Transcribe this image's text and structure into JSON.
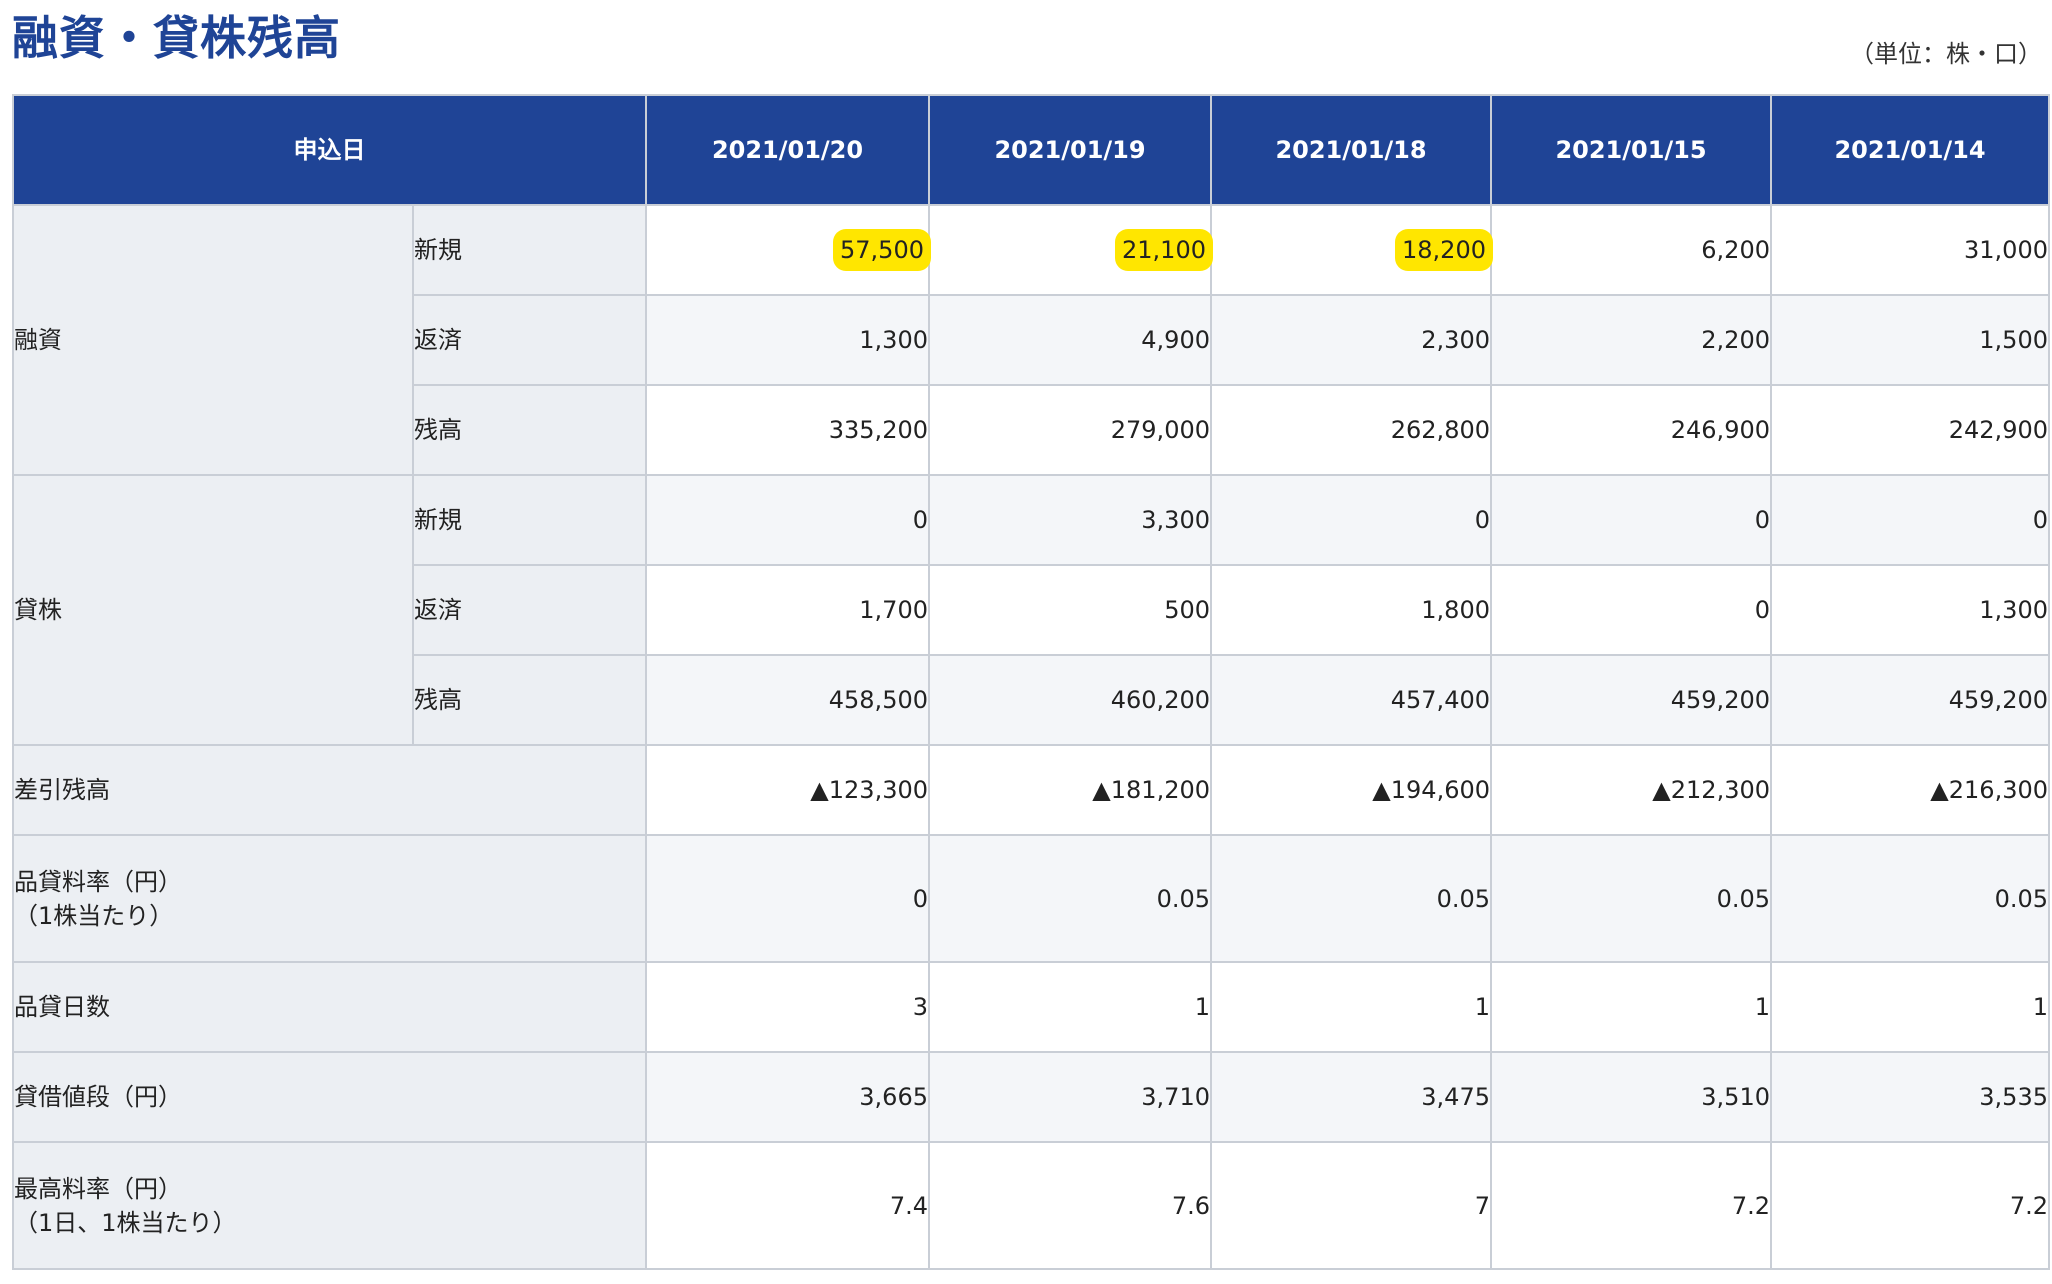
{
  "title": "融資・貸株残高",
  "unit": "（単位：株・口）",
  "header": {
    "date_label": "申込日",
    "dates": [
      "2021/01/20",
      "2021/01/19",
      "2021/01/18",
      "2021/01/15",
      "2021/01/14"
    ]
  },
  "groups": {
    "margin": "融資",
    "lending": "貸株"
  },
  "rows": {
    "margin_new": {
      "label": "新規",
      "values": [
        "57,500",
        "21,100",
        "18,200",
        "6,200",
        "31,000"
      ]
    },
    "margin_repay": {
      "label": "返済",
      "values": [
        "1,300",
        "4,900",
        "2,300",
        "2,200",
        "1,500"
      ]
    },
    "margin_balance": {
      "label": "残高",
      "values": [
        "335,200",
        "279,000",
        "262,800",
        "246,900",
        "242,900"
      ]
    },
    "lending_new": {
      "label": "新規",
      "values": [
        "0",
        "3,300",
        "0",
        "0",
        "0"
      ]
    },
    "lending_repay": {
      "label": "返済",
      "values": [
        "1,700",
        "500",
        "1,800",
        "0",
        "1,300"
      ]
    },
    "lending_balance": {
      "label": "残高",
      "values": [
        "458,500",
        "460,200",
        "457,400",
        "459,200",
        "459,200"
      ]
    },
    "net_balance": {
      "label": "差引残高",
      "values": [
        "▲123,300",
        "▲181,200",
        "▲194,600",
        "▲212,300",
        "▲216,300"
      ]
    },
    "fee_rate": {
      "label_1": "品貸料率（円）",
      "label_2": "（1株当たり）",
      "values": [
        "0",
        "0.05",
        "0.05",
        "0.05",
        "0.05"
      ]
    },
    "fee_days": {
      "label": "品貸日数",
      "values": [
        "3",
        "1",
        "1",
        "1",
        "1"
      ]
    },
    "lending_price": {
      "label": "貸借値段（円）",
      "values": [
        "3,665",
        "3,710",
        "3,475",
        "3,510",
        "3,535"
      ]
    },
    "max_fee_rate": {
      "label_1": "最高料率（円）",
      "label_2": "（1日、1株当たり）",
      "values": [
        "7.4",
        "7.6",
        "7",
        "7.2",
        "7.2"
      ]
    }
  },
  "highlight_color": "#ffe600",
  "header_color": "#1f4496"
}
